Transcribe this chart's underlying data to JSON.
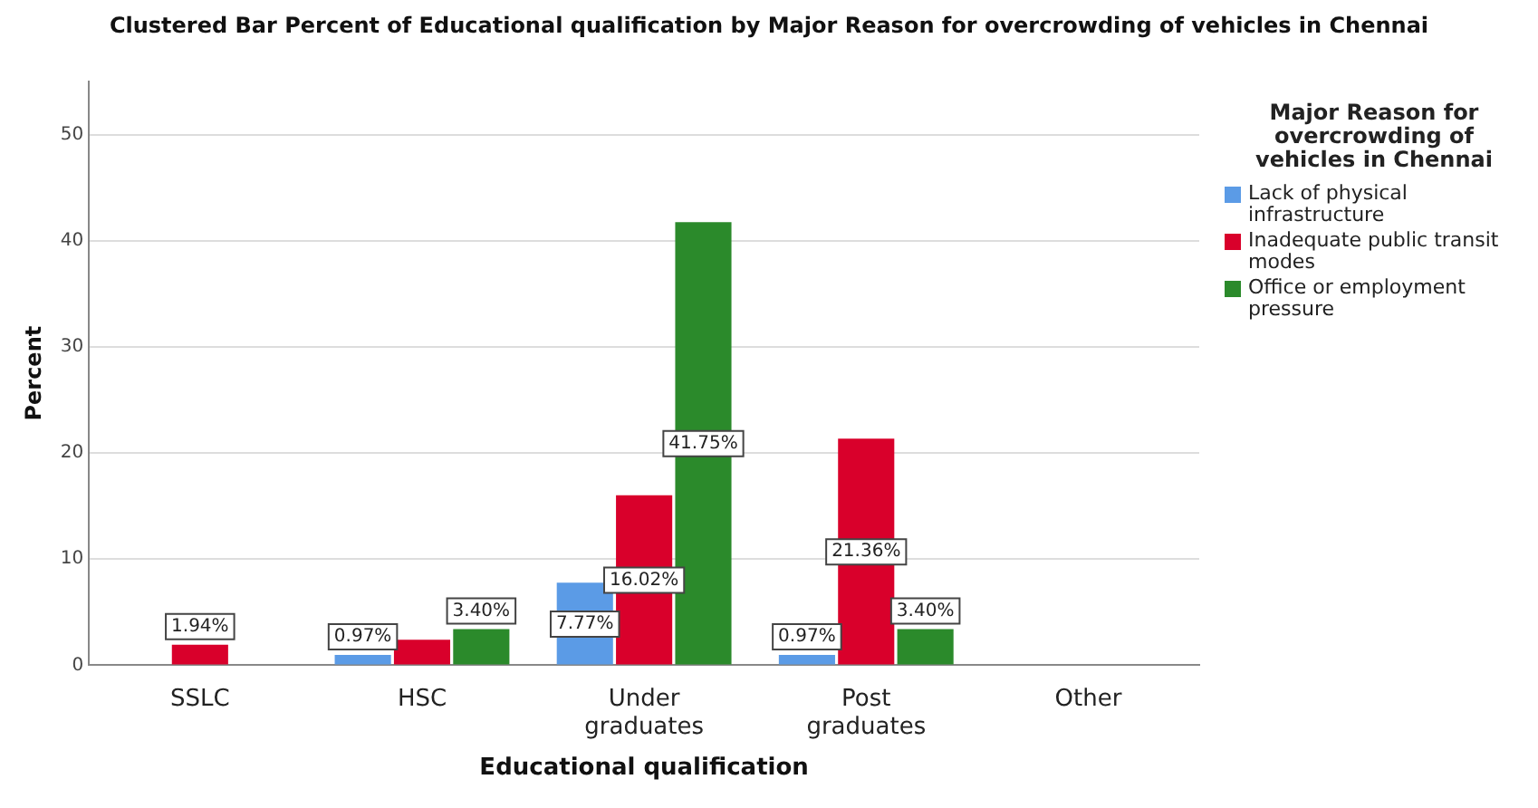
{
  "chart_data": {
    "type": "bar",
    "title": "Clustered Bar Percent of Educational qualification by Major Reason for overcrowding of vehicles in Chennai",
    "xlabel": "Educational qualification",
    "ylabel": "Percent",
    "legend_title": "Major Reason for overcrowding of vehicles in Chennai",
    "legend": "right",
    "grid": "y",
    "categories": [
      "SSLC",
      "HSC",
      "Under graduates",
      "Post graduates",
      "Other"
    ],
    "ylim": [
      0,
      55
    ],
    "yticks": [
      0,
      10,
      20,
      30,
      40,
      50
    ],
    "series": [
      {
        "name": "Lack of physical infrastructure",
        "color": "#5b9be6",
        "values": [
          null,
          0.97,
          7.77,
          0.97,
          null
        ],
        "value_labels": [
          null,
          "0.97%",
          "7.77%",
          "0.97%",
          null
        ]
      },
      {
        "name": "Inadequate public transit modes",
        "color": "#d9002b",
        "values": [
          1.94,
          2.4,
          16.02,
          21.36,
          null
        ],
        "value_labels": [
          "1.94%",
          null,
          "16.02%",
          "21.36%",
          null
        ]
      },
      {
        "name": "Office or employment pressure",
        "color": "#2b8a2b",
        "values": [
          null,
          3.4,
          41.75,
          3.4,
          null
        ],
        "value_labels": [
          null,
          "3.40%",
          "41.75%",
          "3.40%",
          null
        ]
      }
    ]
  }
}
